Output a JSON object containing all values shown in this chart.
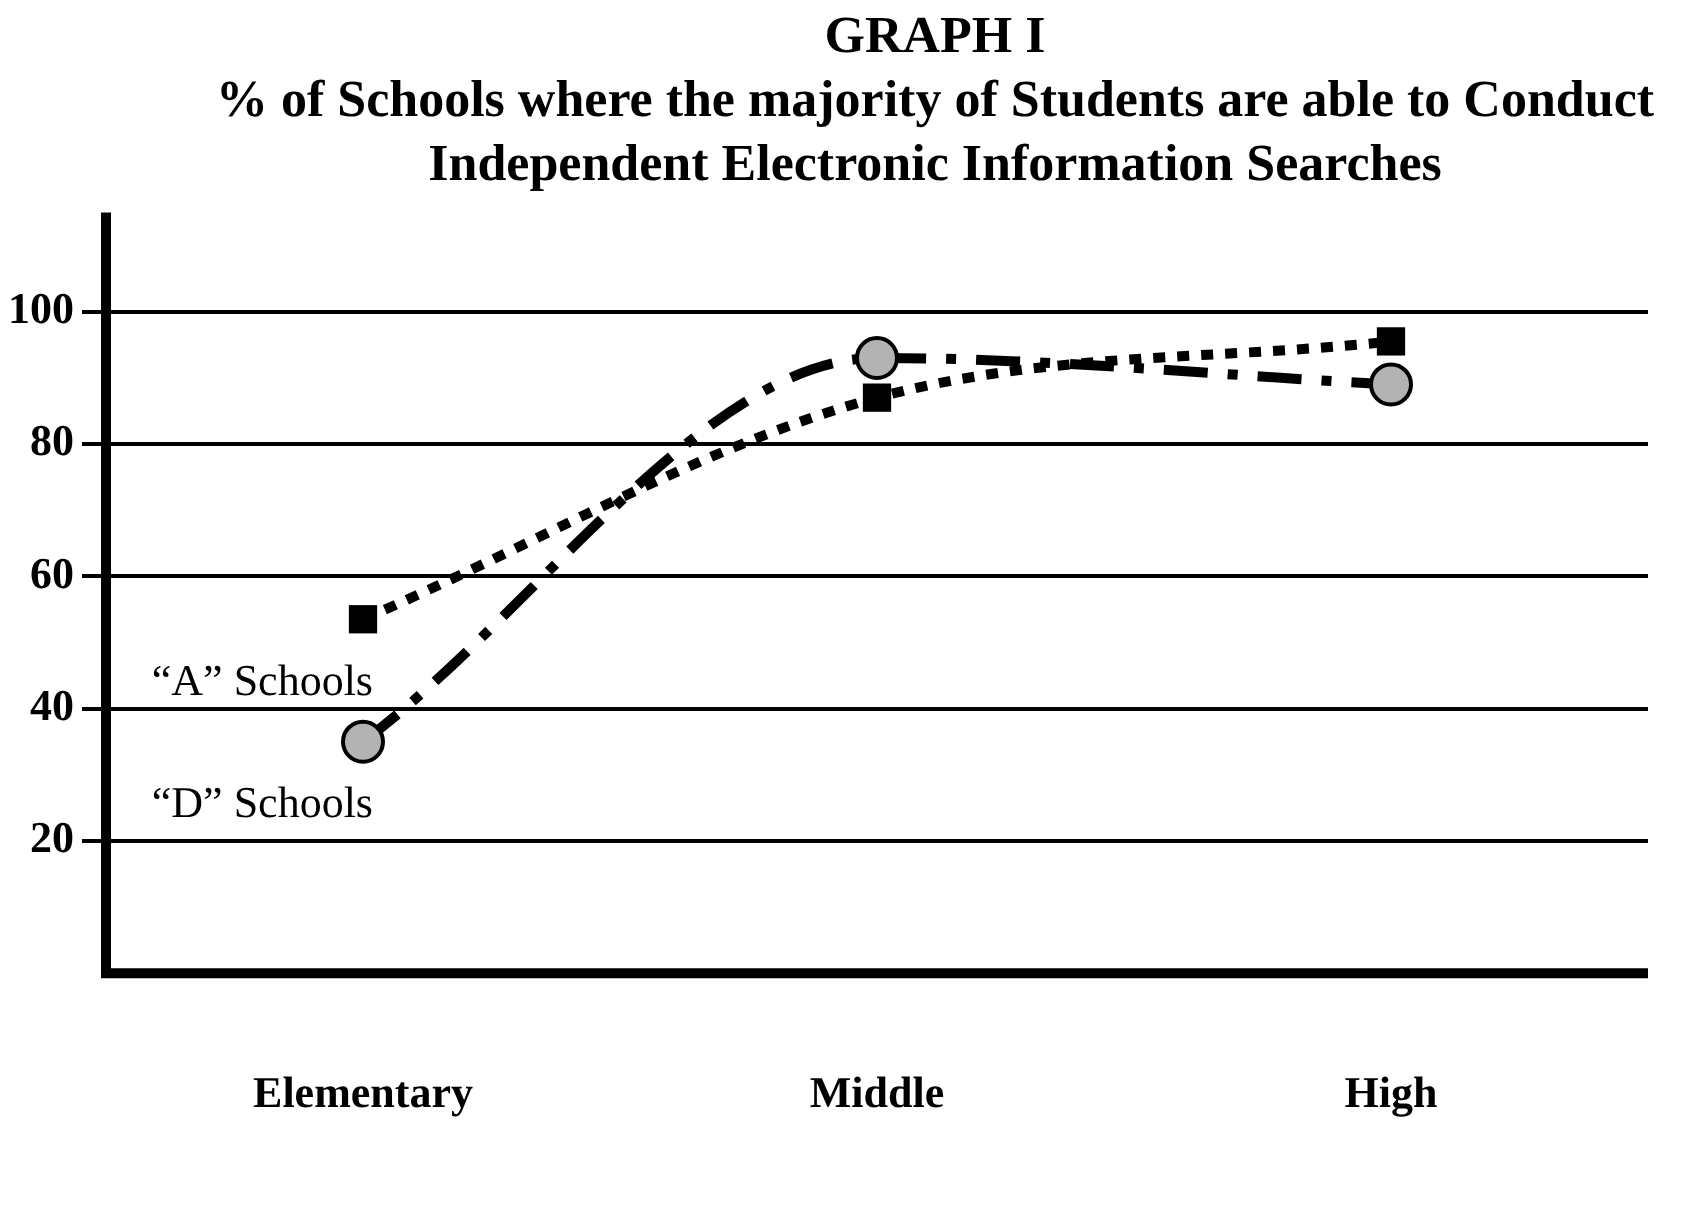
{
  "chart_data": {
    "type": "line",
    "title": "GRAPH I",
    "subtitle": "% of Schools where the majority of Students are able to Conduct Independent Electronic Information Searches",
    "categories": [
      "Elementary",
      "Middle",
      "High"
    ],
    "series": [
      {
        "name": "“A” Schools",
        "color": "#000000",
        "values": [
          53.5,
          87,
          95.5
        ],
        "marker": "square",
        "line_style": "dotted"
      },
      {
        "name": "“D” Schools",
        "color": "#b3b3b3",
        "values": [
          35,
          93,
          89
        ],
        "marker": "circle",
        "line_style": "dashed"
      }
    ],
    "ylim": [
      0,
      115
    ],
    "yticks": [
      20,
      40,
      60,
      80,
      100
    ],
    "grid": "y",
    "legend": false
  }
}
